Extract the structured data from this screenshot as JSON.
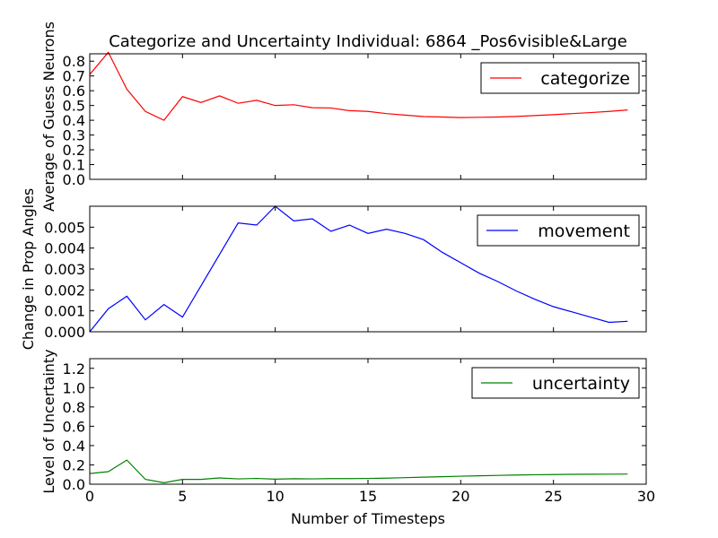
{
  "chart_data": {
    "type": "line",
    "title": "Categorize and Uncertainty Individual: 6864 _Pos6visible&Large",
    "xlabel": "Number of Timesteps",
    "xlim": [
      0,
      30
    ],
    "xticks": [
      0,
      5,
      10,
      15,
      20,
      25,
      30
    ],
    "x": [
      0,
      1,
      2,
      3,
      4,
      5,
      6,
      7,
      8,
      9,
      10,
      11,
      12,
      13,
      14,
      15,
      16,
      17,
      18,
      19,
      20,
      21,
      22,
      23,
      24,
      25,
      26,
      27,
      28,
      29
    ],
    "panels": [
      {
        "ylabel": "Average of Guess Neurons",
        "ylim": [
          0,
          0.85
        ],
        "yticks": [
          "0.0",
          "0.1",
          "0.2",
          "0.3",
          "0.4",
          "0.5",
          "0.6",
          "0.7",
          "0.8"
        ],
        "legend_position": "top-right",
        "series": [
          {
            "name": "categorize",
            "color": "#ff0000",
            "values": [
              0.71,
              0.86,
              0.61,
              0.46,
              0.4,
              0.56,
              0.52,
              0.565,
              0.515,
              0.535,
              0.5,
              0.505,
              0.485,
              0.483,
              0.465,
              0.46,
              0.445,
              0.435,
              0.425,
              0.422,
              0.418,
              0.42,
              0.422,
              0.426,
              0.432,
              0.438,
              0.445,
              0.452,
              0.46,
              0.47
            ]
          }
        ]
      },
      {
        "ylabel": "Change in Prop Angles",
        "ylim": [
          0,
          0.006
        ],
        "yticks": [
          "0.000",
          "0.001",
          "0.002",
          "0.003",
          "0.004",
          "0.005"
        ],
        "legend_position": "top-right",
        "series": [
          {
            "name": "movement",
            "color": "#0000ff",
            "values": [
              0.0,
              0.0011,
              0.0017,
              0.00057,
              0.0013,
              0.0007,
              0.0022,
              0.0037,
              0.0052,
              0.0051,
              0.006,
              0.0053,
              0.0054,
              0.0048,
              0.0051,
              0.0047,
              0.0049,
              0.0047,
              0.0044,
              0.0038,
              0.0033,
              0.0028,
              0.0024,
              0.00195,
              0.00155,
              0.0012,
              0.00095,
              0.0007,
              0.00045,
              0.0005
            ]
          }
        ]
      },
      {
        "ylabel": "Level of Uncertainty",
        "ylim": [
          0,
          1.3
        ],
        "yticks": [
          "0.0",
          "0.2",
          "0.4",
          "0.6",
          "0.8",
          "1.0",
          "1.2"
        ],
        "legend_position": "top-right",
        "series": [
          {
            "name": "uncertainty",
            "color": "#008000",
            "values": [
              0.11,
              0.13,
              0.25,
              0.05,
              0.015,
              0.05,
              0.05,
              0.065,
              0.055,
              0.06,
              0.052,
              0.057,
              0.055,
              0.058,
              0.058,
              0.06,
              0.063,
              0.068,
              0.073,
              0.078,
              0.083,
              0.087,
              0.091,
              0.095,
              0.098,
              0.1,
              0.102,
              0.103,
              0.104,
              0.105
            ]
          }
        ]
      }
    ]
  }
}
